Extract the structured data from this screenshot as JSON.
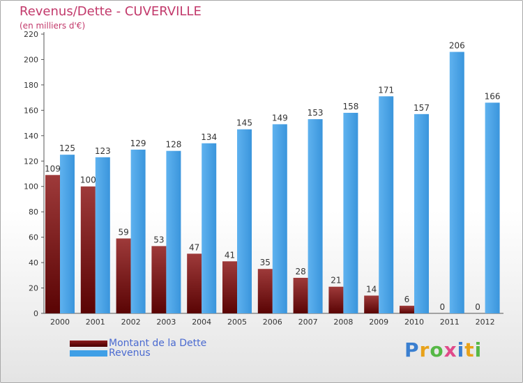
{
  "chart_data": {
    "type": "bar",
    "title": "Revenus/Dette - CUVERVILLE",
    "subtitle": "(en milliers d'€)",
    "categories": [
      "2000",
      "2001",
      "2002",
      "2003",
      "2004",
      "2005",
      "2006",
      "2007",
      "2008",
      "2009",
      "2010",
      "2011",
      "2012"
    ],
    "series": [
      {
        "name": "Montant de la Dette",
        "color": "#8b1a1a",
        "values": [
          109,
          100,
          59,
          53,
          47,
          41,
          35,
          28,
          21,
          14,
          6,
          0,
          0
        ]
      },
      {
        "name": "Revenus",
        "color": "#3f9fe6",
        "values": [
          125,
          123,
          129,
          128,
          134,
          145,
          149,
          153,
          158,
          171,
          157,
          206,
          166
        ]
      }
    ],
    "ylim": [
      0,
      220
    ],
    "yticks": [
      0,
      20,
      40,
      60,
      80,
      100,
      120,
      140,
      160,
      180,
      200,
      220
    ],
    "grid": false,
    "legend_position": "bottom-left"
  },
  "logo": {
    "letters": [
      "P",
      "r",
      "o",
      "x",
      "i",
      "t",
      "i"
    ],
    "colors": [
      "#3a7fd0",
      "#e8a21a",
      "#56b846",
      "#e04a8a",
      "#3a7fd0",
      "#e8a21a",
      "#56b846"
    ]
  }
}
